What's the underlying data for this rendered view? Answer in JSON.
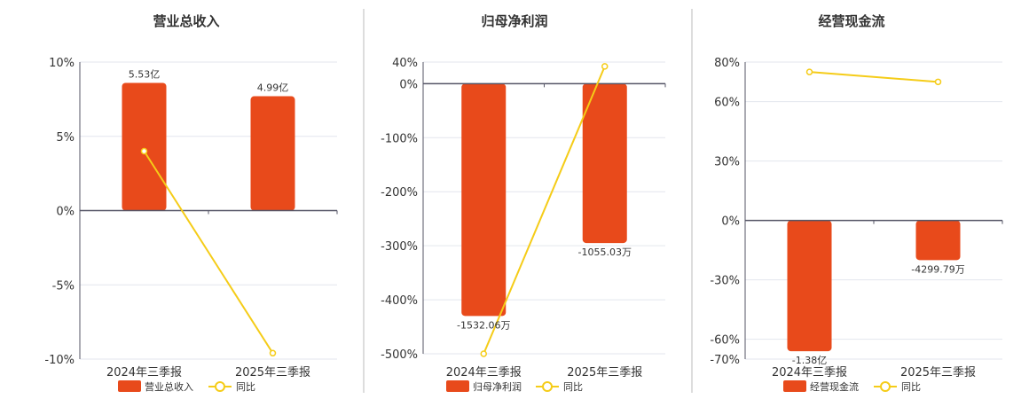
{
  "colors": {
    "bar": "#e84a1b",
    "line": "#f5cc18",
    "axis": "#555566",
    "grid": "#e3e6ee",
    "divider": "#bbbbbb"
  },
  "chart_data": [
    {
      "type": "bar",
      "title": "营业总收入",
      "categories": [
        "2024年三季报",
        "2025年三季报"
      ],
      "series": [
        {
          "name": "营业总收入",
          "type": "bar",
          "values": [
            8.6,
            7.7
          ],
          "labels": [
            "5.53亿",
            "4.99亿"
          ]
        },
        {
          "name": "同比",
          "type": "line",
          "values": [
            4.0,
            -9.6
          ]
        }
      ],
      "ylim": [
        -10,
        10
      ],
      "yticks": [
        -10,
        -5,
        0,
        5,
        10
      ],
      "ytick_labels": [
        "-10%",
        "-5%",
        "0%",
        "5%",
        "10%"
      ]
    },
    {
      "type": "bar",
      "title": "归母净利润",
      "categories": [
        "2024年三季报",
        "2025年三季报"
      ],
      "series": [
        {
          "name": "归母净利润",
          "type": "bar",
          "values": [
            -430,
            -295
          ],
          "labels": [
            "-1532.06万",
            "-1055.03万"
          ]
        },
        {
          "name": "同比",
          "type": "line",
          "values": [
            -500,
            32
          ]
        }
      ],
      "ylim": [
        -500,
        40
      ],
      "yticks": [
        -500,
        -400,
        -300,
        -200,
        -100,
        0,
        40
      ],
      "ytick_labels": [
        "-500%",
        "-400%",
        "-300%",
        "-200%",
        "-100%",
        "0%",
        "40%"
      ]
    },
    {
      "type": "bar",
      "title": "经营现金流",
      "categories": [
        "2024年三季报",
        "2025年三季报"
      ],
      "series": [
        {
          "name": "经营现金流",
          "type": "bar",
          "values": [
            -66,
            -20
          ],
          "labels": [
            "-1.38亿",
            "-4299.79万"
          ]
        },
        {
          "name": "同比",
          "type": "line",
          "values": [
            75,
            70
          ]
        }
      ],
      "ylim": [
        -70,
        80
      ],
      "yticks": [
        -70,
        -60,
        -30,
        0,
        30,
        60,
        80
      ],
      "ytick_labels": [
        "-70%",
        "-60%",
        "-30%",
        "0%",
        "30%",
        "60%",
        "80%"
      ]
    }
  ]
}
